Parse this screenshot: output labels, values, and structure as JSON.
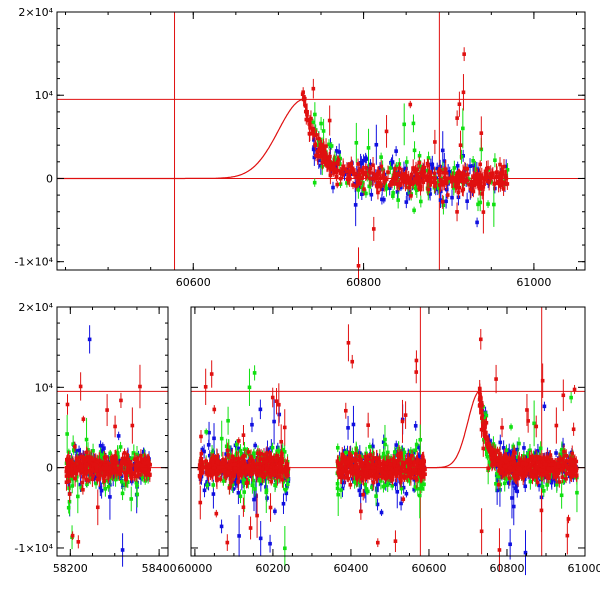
{
  "chart_data": [
    {
      "type": "scatter",
      "title": "",
      "xlabel": "",
      "ylabel": "",
      "xlim": [
        60440,
        61060
      ],
      "ylim": [
        -11000,
        20000
      ],
      "x_ticks": [
        {
          "value": 60600,
          "label": "60600"
        },
        {
          "value": 60800,
          "label": "60800"
        },
        {
          "value": 61000,
          "label": "61000"
        }
      ],
      "y_ticks": [
        {
          "value": 20000,
          "label": "2×10⁴"
        },
        {
          "value": 10000,
          "label": "10⁴"
        },
        {
          "value": 0,
          "label": "0"
        },
        {
          "value": -10000,
          "label": "-1×10⁴"
        }
      ],
      "vertical_lines": [
        60578,
        60889
      ],
      "horizontal_lines": [
        9500,
        0
      ],
      "model": {
        "t0": 60578,
        "peak_x": 60730,
        "peak_y": 9500,
        "rise": 30,
        "decay": 18
      },
      "series": [
        {
          "name": "blue",
          "color": "#1010e0",
          "segments": [
            {
              "x0": 60740,
              "x1": 60970
            }
          ]
        },
        {
          "name": "green",
          "color": "#10e010",
          "segments": [
            {
              "x0": 60740,
              "x1": 60970
            }
          ]
        },
        {
          "name": "red",
          "color": "#e01010",
          "segments": [
            {
              "x0": 60728,
              "x1": 60970
            }
          ]
        }
      ]
    },
    {
      "type": "scatter",
      "title": "",
      "xlabel": "",
      "ylabel": "",
      "ylim": [
        -11000,
        20000
      ],
      "broken_axis": true,
      "panels": [
        {
          "xlim": [
            58170,
            58420
          ],
          "x_ticks": [
            {
              "value": 58200,
              "label": "58200"
            },
            {
              "value": 58400,
              "label": "58400"
            }
          ]
        },
        {
          "xlim": [
            59990,
            61000
          ],
          "x_ticks": [
            {
              "value": 60000,
              "label": "60000"
            },
            {
              "value": 60200,
              "label": "60200"
            },
            {
              "value": 60400,
              "label": "60400"
            },
            {
              "value": 60600,
              "label": "60600"
            },
            {
              "value": 60800,
              "label": "60800"
            },
            {
              "value": 61000,
              "label": "61000"
            }
          ]
        }
      ],
      "y_ticks": [
        {
          "value": 20000,
          "label": "2×10⁴"
        },
        {
          "value": 10000,
          "label": "10⁴"
        },
        {
          "value": 0,
          "label": "0"
        },
        {
          "value": -10000,
          "label": "-1×10⁴"
        }
      ],
      "vertical_lines": [
        60578,
        60889
      ],
      "horizontal_lines": [
        9500,
        0
      ],
      "model": {
        "t0": 60578,
        "peak_x": 60730,
        "peak_y": 9500,
        "rise": 30,
        "decay": 18
      },
      "series": [
        {
          "name": "blue",
          "color": "#1010e0",
          "segments": [
            {
              "x0": 58190,
              "x1": 58380
            },
            {
              "x0": 60010,
              "x1": 60240
            },
            {
              "x0": 60365,
              "x1": 60590
            },
            {
              "x0": 60735,
              "x1": 60980
            }
          ]
        },
        {
          "name": "green",
          "color": "#10e010",
          "segments": [
            {
              "x0": 58190,
              "x1": 58380
            },
            {
              "x0": 60010,
              "x1": 60240
            },
            {
              "x0": 60365,
              "x1": 60590
            },
            {
              "x0": 60735,
              "x1": 60980
            }
          ]
        },
        {
          "name": "red",
          "color": "#e01010",
          "segments": [
            {
              "x0": 58190,
              "x1": 58380
            },
            {
              "x0": 60010,
              "x1": 60240
            },
            {
              "x0": 60365,
              "x1": 60590
            },
            {
              "x0": 60728,
              "x1": 60980
            }
          ]
        }
      ]
    }
  ]
}
